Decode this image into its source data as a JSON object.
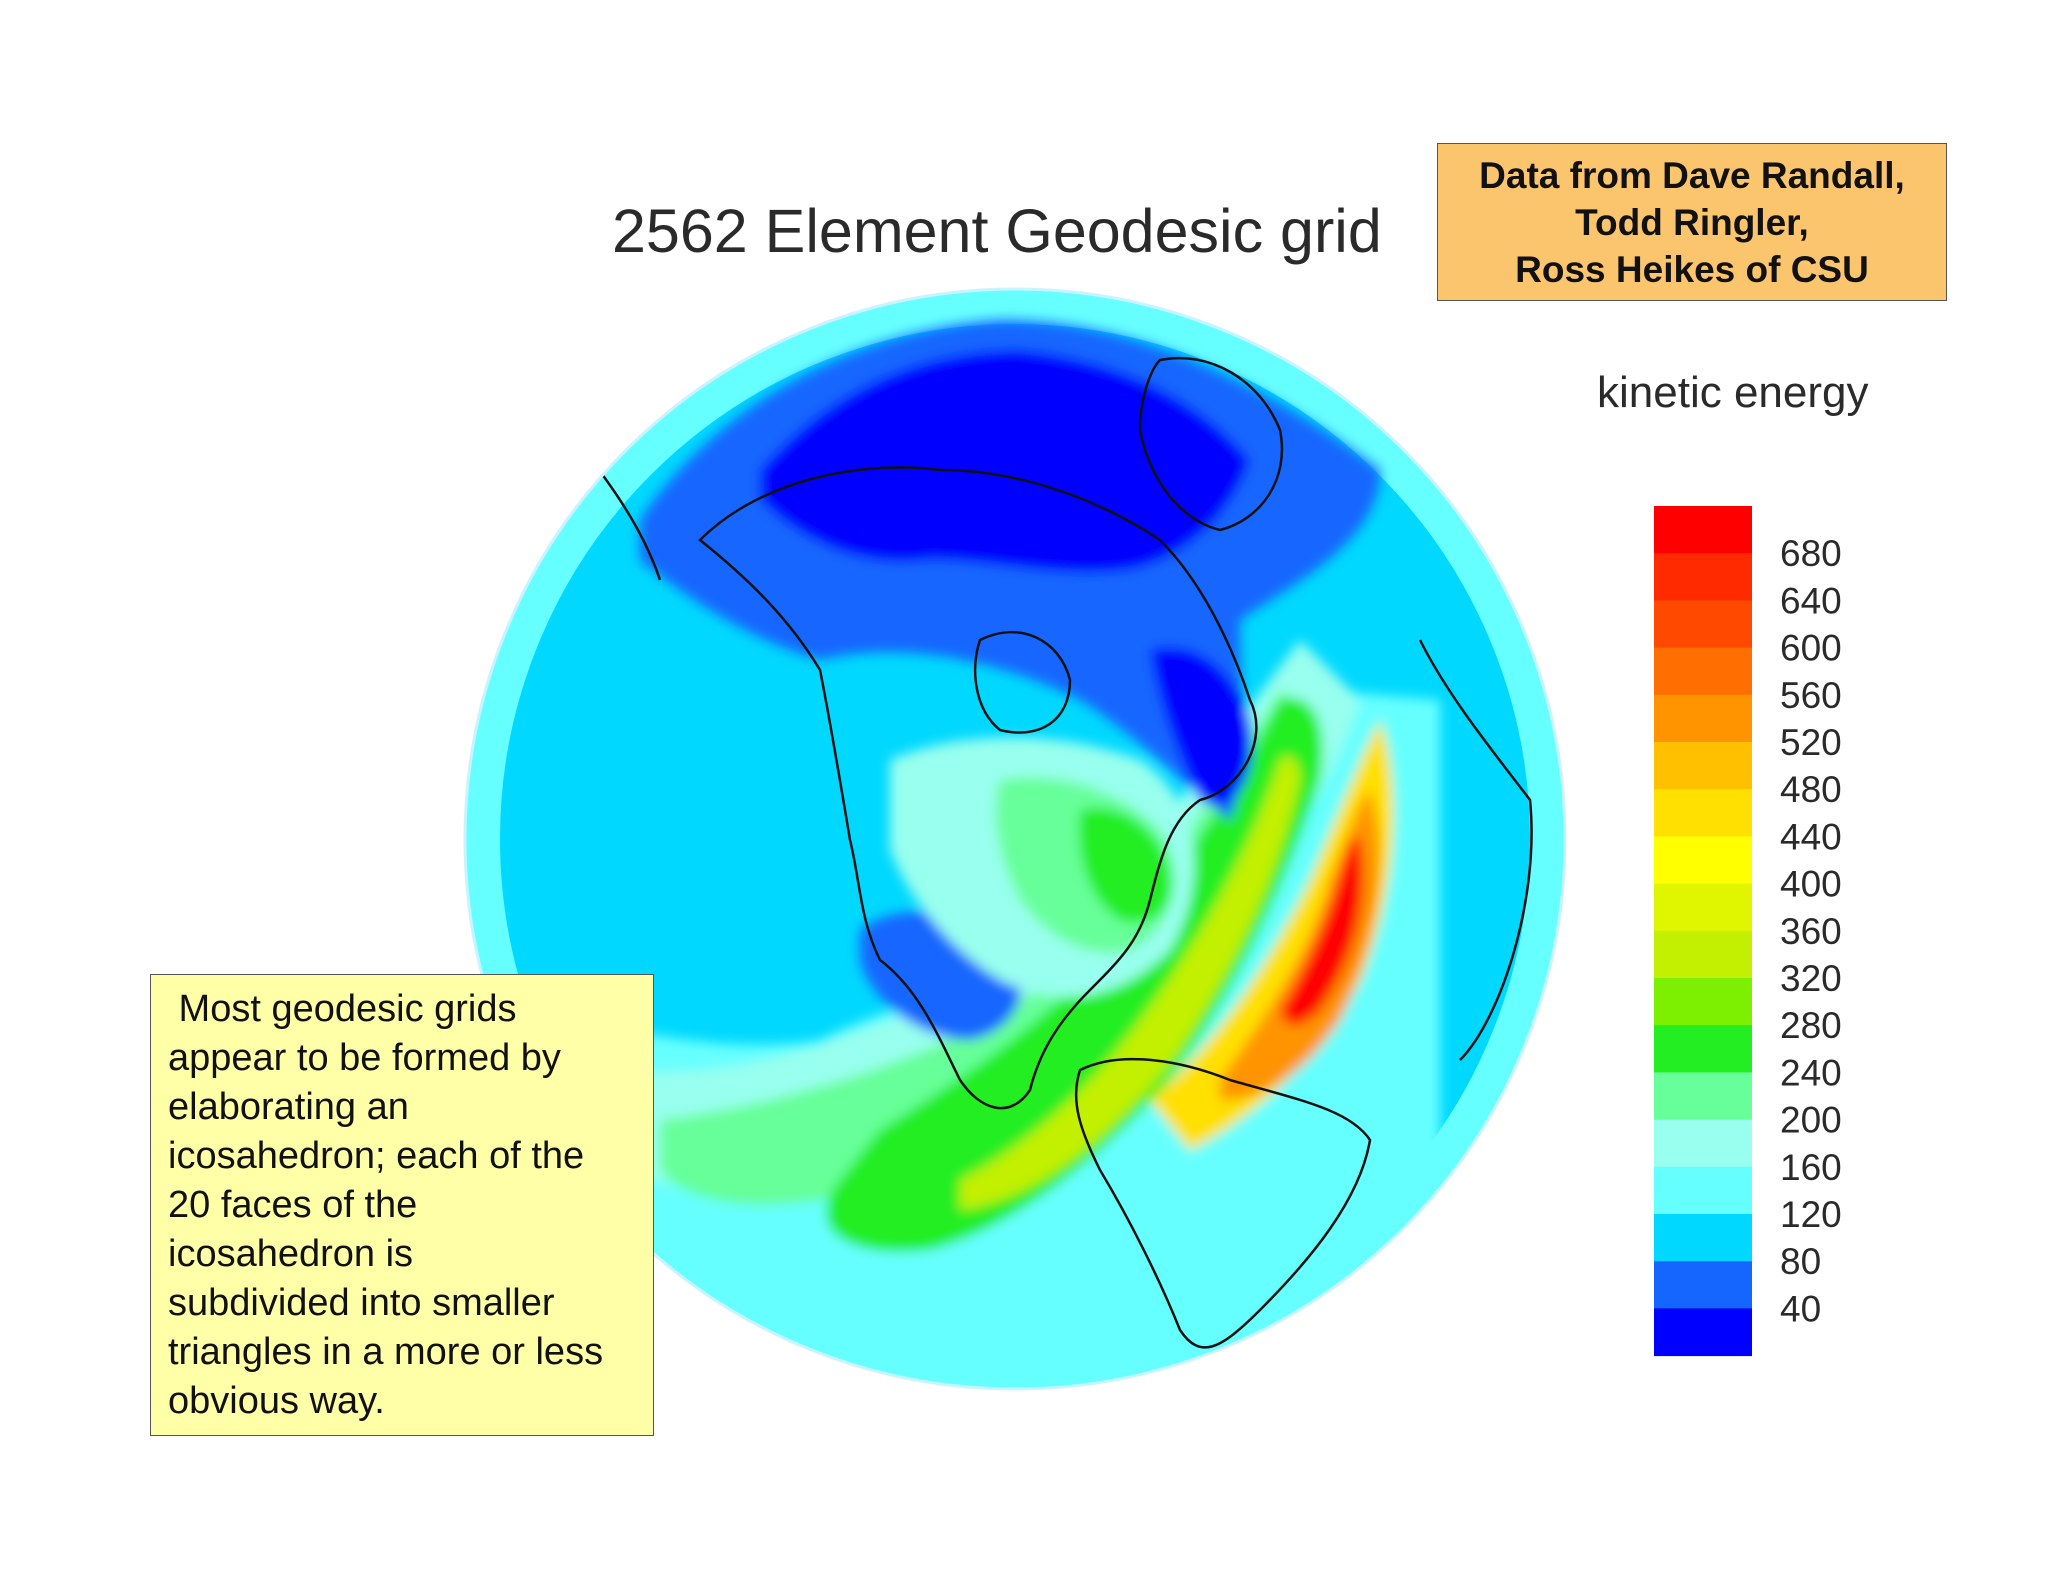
{
  "slide": {
    "title": "2562 Element Geodesic grid",
    "credit_lines": [
      "Data from Dave Randall,",
      "Todd Ringler,",
      "Ross Heikes of CSU"
    ],
    "note_lines": [
      " Most geodesic grids",
      "appear to be formed by",
      "elaborating an",
      "icosahedron; each of the",
      "20 faces of the",
      "icosahedron is",
      "subdivided into smaller",
      "triangles in a more or less",
      "obvious way."
    ]
  },
  "map": {
    "projection": "orthographic globe centered on North America",
    "legend_title": "kinetic energy",
    "colorbar": {
      "tick_labels": [
        "680",
        "640",
        "600",
        "560",
        "520",
        "480",
        "440",
        "400",
        "360",
        "320",
        "280",
        "240",
        "200",
        "160",
        "120",
        "80",
        "40"
      ],
      "colors_top_to_bottom": [
        "#ff0000",
        "#ff2a00",
        "#ff4800",
        "#ff6e00",
        "#ff9400",
        "#ffc000",
        "#ffe000",
        "#ffff00",
        "#e0f500",
        "#c2f000",
        "#7cf000",
        "#22ee22",
        "#66ff99",
        "#99ffee",
        "#66ffff",
        "#00d8ff",
        "#1466ff",
        "#0000ff"
      ]
    },
    "palette": {
      "ocean_background": "#00d8ff",
      "cyan_light": "#66ffff",
      "pale_cyan": "#99ffee",
      "mint": "#66ff99",
      "green": "#22ee22",
      "yellow_green": "#c2f000",
      "yellow": "#ffe000",
      "orange": "#ff9400",
      "red_orange": "#ff4800",
      "red": "#ff0000",
      "dark_blue": "#0000ff",
      "mid_blue": "#1466ff"
    }
  }
}
